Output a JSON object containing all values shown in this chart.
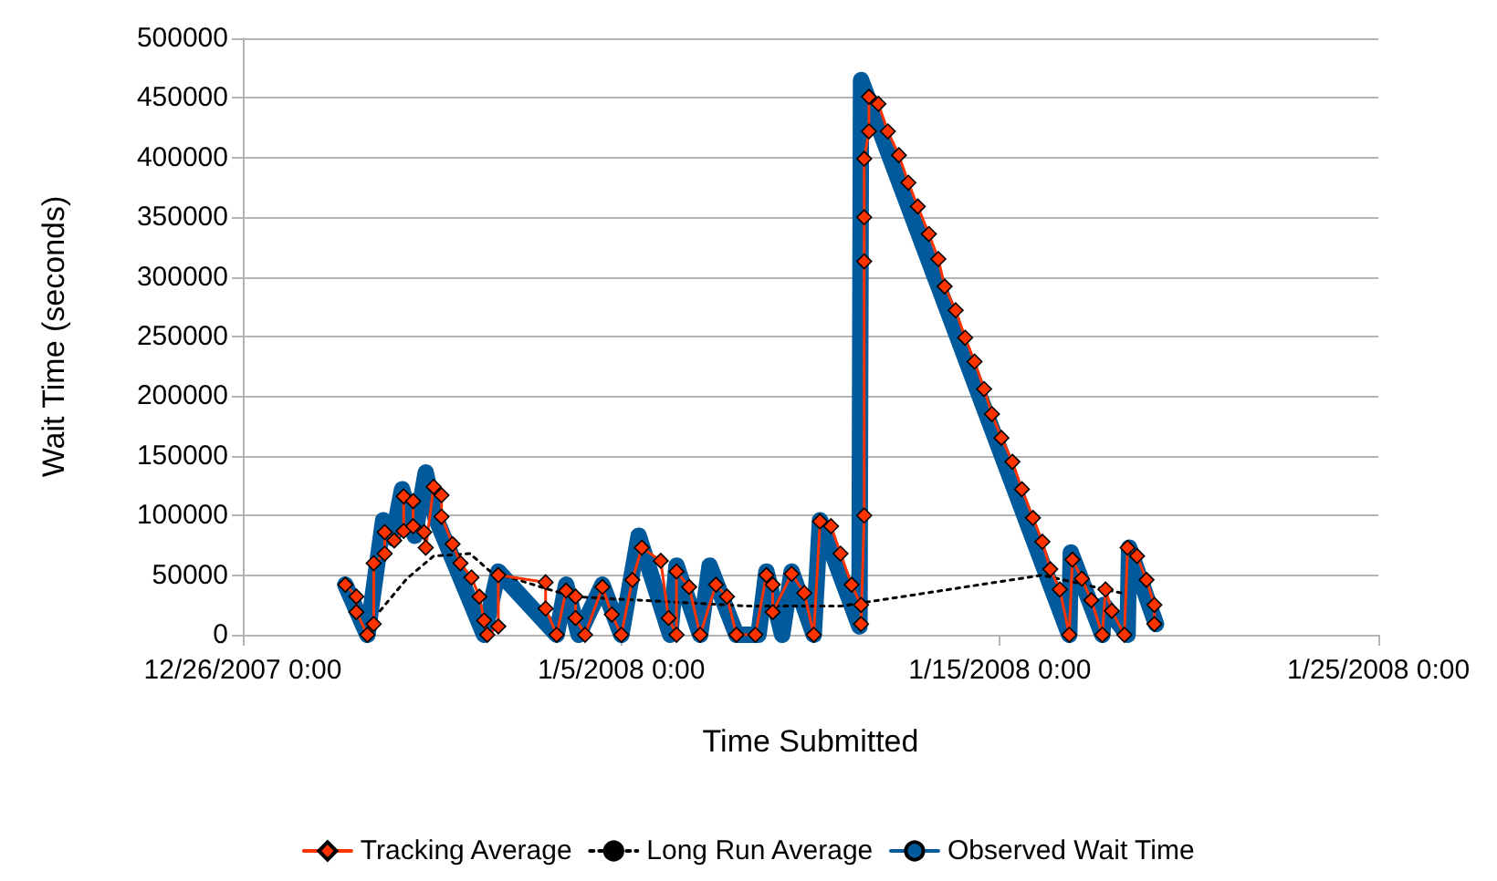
{
  "chart_data": {
    "type": "line",
    "xlabel": "Time Submitted",
    "ylabel": "Wait Time (seconds)",
    "xlim": [
      "2007-12-26T00:00",
      "2008-01-25T00:00"
    ],
    "xticks": [
      {
        "value": "2007-12-26T00:00",
        "label": "12/26/2007 0:00"
      },
      {
        "value": "2008-01-05T00:00",
        "label": "1/5/2008 0:00"
      },
      {
        "value": "2008-01-15T00:00",
        "label": "1/15/2008 0:00"
      },
      {
        "value": "2008-01-25T00:00",
        "label": "1/25/2008 0:00"
      }
    ],
    "ylim": [
      0,
      500000
    ],
    "yticks": [
      0,
      50000,
      100000,
      150000,
      200000,
      250000,
      300000,
      350000,
      400000,
      450000,
      500000
    ],
    "grid": "y",
    "legend": "bottom",
    "series": [
      {
        "name": "Tracking Average",
        "color": "#ff3300",
        "marker": "diamond",
        "line_style": "solid",
        "x": [
          "2007-12-28T17:00",
          "2007-12-29T00:00",
          "2007-12-29T00:00",
          "2007-12-29T07:00",
          "2007-12-29T11:00",
          "2007-12-29T11:00",
          "2007-12-29T18:00",
          "2007-12-29T18:00",
          "2007-12-30T00:00",
          "2007-12-30T06:00",
          "2007-12-30T06:00",
          "2007-12-30T12:00",
          "2007-12-30T12:00",
          "2007-12-30T19:00",
          "2007-12-30T20:00",
          "2007-12-31T01:00",
          "2007-12-31T06:00",
          "2007-12-31T06:00",
          "2007-12-31T13:00",
          "2007-12-31T18:00",
          "2008-01-01T01:00",
          "2008-01-01T06:00",
          "2008-01-01T09:00",
          "2008-01-01T11:00",
          "2008-01-01T18:00",
          "2008-01-01T18:00",
          "2008-01-03T00:00",
          "2008-01-03T00:00",
          "2008-01-03T07:00",
          "2008-01-03T13:00",
          "2008-01-03T19:00",
          "2008-01-03T19:00",
          "2008-01-04T01:00",
          "2008-01-04T12:00",
          "2008-01-04T18:00",
          "2008-01-05T00:00",
          "2008-01-05T07:00",
          "2008-01-05T13:00",
          "2008-01-06T01:00",
          "2008-01-06T06:00",
          "2008-01-06T11:00",
          "2008-01-06T11:00",
          "2008-01-06T19:00",
          "2008-01-07T02:00",
          "2008-01-07T12:00",
          "2008-01-07T19:00",
          "2008-01-08T01:00",
          "2008-01-08T13:00",
          "2008-01-08T20:00",
          "2008-01-09T00:00",
          "2008-01-09T00:00",
          "2008-01-09T12:00",
          "2008-01-09T20:00",
          "2008-01-10T02:00",
          "2008-01-10T06:00",
          "2008-01-10T13:00",
          "2008-01-10T19:00",
          "2008-01-11T02:00",
          "2008-01-11T08:00",
          "2008-01-11T08:00",
          "2008-01-11T10:00",
          "2008-01-11T10:00",
          "2008-01-11T10:00",
          "2008-01-11T10:00",
          "2008-01-11T13:00",
          "2008-01-11T13:00",
          "2008-01-11T19:00",
          "2008-01-12T01:00",
          "2008-01-12T08:00",
          "2008-01-12T14:00",
          "2008-01-12T20:00",
          "2008-01-13T03:00",
          "2008-01-13T09:00",
          "2008-01-13T13:00",
          "2008-01-13T20:00",
          "2008-01-14T02:00",
          "2008-01-14T08:00",
          "2008-01-14T14:00",
          "2008-01-14T19:00",
          "2008-01-15T01:00",
          "2008-01-15T08:00",
          "2008-01-15T14:00",
          "2008-01-15T21:00",
          "2008-01-16T03:00",
          "2008-01-16T08:00",
          "2008-01-16T14:00",
          "2008-01-16T20:00",
          "2008-01-16T22:00",
          "2008-01-17T04:00",
          "2008-01-17T10:00",
          "2008-01-17T17:00",
          "2008-01-17T19:00",
          "2008-01-17T23:00",
          "2008-01-18T07:00",
          "2008-01-18T09:00",
          "2008-01-18T15:00",
          "2008-01-18T21:00",
          "2008-01-19T02:00",
          "2008-01-19T02:00"
        ],
        "values": [
          42000,
          32000,
          19000,
          0,
          9000,
          60000,
          68000,
          86000,
          79000,
          87000,
          116000,
          112000,
          91000,
          86000,
          73000,
          124000,
          117000,
          99000,
          76000,
          60000,
          48000,
          32000,
          12000,
          0,
          7000,
          50000,
          44000,
          22000,
          0,
          37000,
          32000,
          14000,
          0,
          40000,
          17000,
          0,
          46000,
          73000,
          62000,
          14000,
          0,
          53000,
          40000,
          0,
          42000,
          32000,
          0,
          0,
          50000,
          42000,
          19000,
          51000,
          35000,
          0,
          95000,
          91000,
          68000,
          42000,
          25000,
          9000,
          100000,
          313000,
          350000,
          399000,
          422000,
          451000,
          445000,
          422000,
          402000,
          379000,
          359000,
          336000,
          315000,
          292000,
          272000,
          249000,
          229000,
          206000,
          185000,
          165000,
          145000,
          122000,
          98000,
          78000,
          55000,
          38000,
          0,
          63000,
          47000,
          29000,
          0,
          38000,
          20000,
          0,
          73000,
          66000,
          46000,
          25000,
          9000
        ]
      },
      {
        "name": "Long Run Average",
        "color": "#000000",
        "marker": "none",
        "line_style": "dotted",
        "x": [
          "2007-12-29T15:00",
          "2007-12-30T08:00",
          "2007-12-31T01:00",
          "2008-01-01T00:00",
          "2008-01-01T13:00",
          "2008-01-03T17:00",
          "2008-01-08T09:00",
          "2008-01-10T19:00",
          "2008-01-16T03:00",
          "2008-01-18T05:00"
        ],
        "values": [
          20000,
          47000,
          66000,
          68000,
          53000,
          32000,
          24000,
          24000,
          50000,
          35000
        ]
      },
      {
        "name": "Observed Wait Time",
        "color": "#005a9c",
        "marker": "none",
        "line_style": "solid",
        "x": [
          "2007-12-28T17:00",
          "2007-12-29T07:00",
          "2007-12-29T17:00",
          "2007-12-29T23:00",
          "2007-12-30T05:00",
          "2007-12-30T13:00",
          "2007-12-30T20:00",
          "2007-12-31T02:00",
          "2008-01-01T09:00",
          "2008-01-01T18:00",
          "2008-01-03T07:00",
          "2008-01-03T13:00",
          "2008-01-03T21:00",
          "2008-01-04T12:00",
          "2008-01-05T00:00",
          "2008-01-05T11:00",
          "2008-01-06T07:00",
          "2008-01-06T11:00",
          "2008-01-07T02:00",
          "2008-01-07T08:00",
          "2008-01-08T01:00",
          "2008-01-08T15:00",
          "2008-01-08T20:00",
          "2008-01-09T06:00",
          "2008-01-09T12:00",
          "2008-01-10T02:00",
          "2008-01-10T06:00",
          "2008-01-11T07:00",
          "2008-01-11T08:00",
          "2008-01-16T20:00",
          "2008-01-16T21:00",
          "2008-01-17T17:00",
          "2008-01-17T18:00",
          "2008-01-18T09:00",
          "2008-01-18T10:00",
          "2008-01-19T03:00"
        ],
        "values": [
          42000,
          0,
          96000,
          81000,
          122000,
          83000,
          136000,
          99000,
          0,
          53000,
          0,
          42000,
          0,
          42000,
          0,
          83000,
          0,
          58000,
          0,
          58000,
          0,
          0,
          53000,
          0,
          53000,
          0,
          96000,
          7000,
          465000,
          0,
          69000,
          0,
          25000,
          0,
          73000,
          9000
        ]
      }
    ]
  }
}
